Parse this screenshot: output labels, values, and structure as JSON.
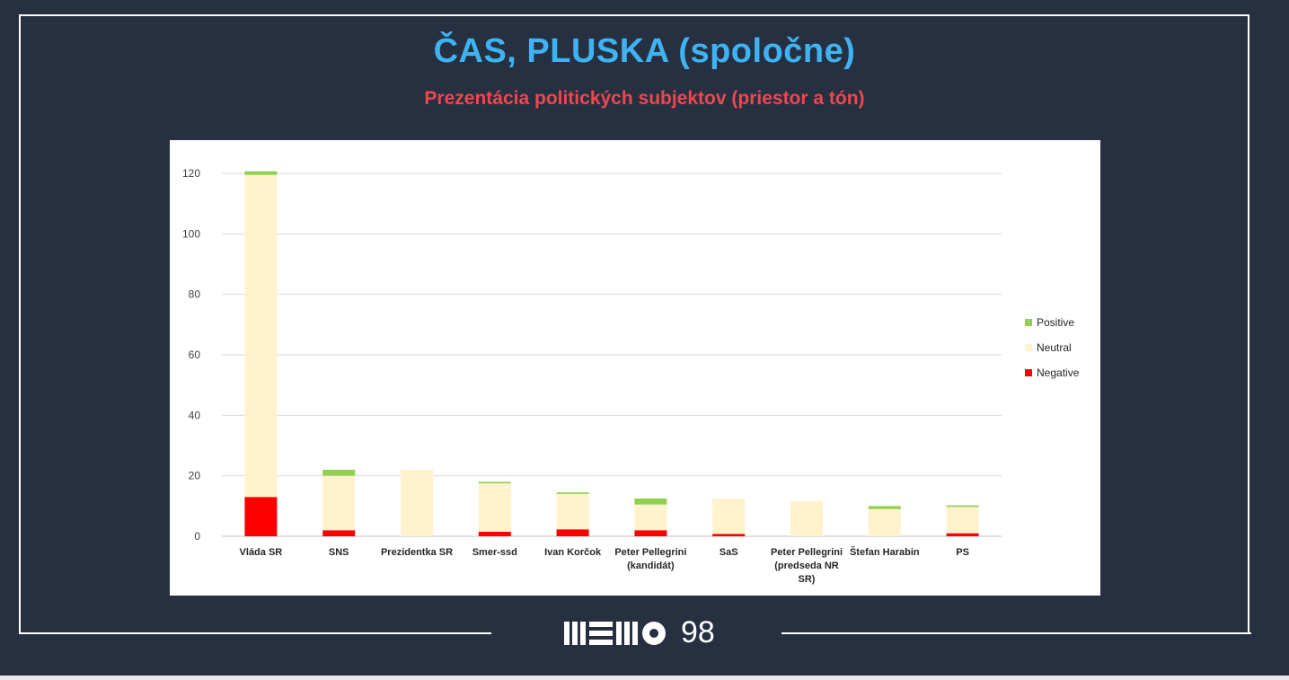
{
  "header": {
    "title": "ČAS, PLUSKA (spoločne)",
    "subtitle": "Prezentácia politických subjektov (priestor a tón)"
  },
  "logo": {
    "number_text": "98",
    "icon": "memo-logo"
  },
  "colors": {
    "background": "#263041",
    "title": "#3fb3f2",
    "subtitle": "#f0474d",
    "positive": "#92d050",
    "neutral": "#fff2cc",
    "negative": "#ff0000"
  },
  "chart_data": {
    "type": "bar",
    "stacked": true,
    "title": "",
    "xlabel": "",
    "ylabel": "",
    "ylim": [
      0,
      120
    ],
    "yticks": [
      0,
      20,
      40,
      60,
      80,
      100,
      120
    ],
    "grid": true,
    "legend_position": "right",
    "categories": [
      "Vláda SR",
      "SNS",
      "Prezidentka SR",
      "Smer-ssd",
      "Ivan Korčok",
      "Peter Pellegrini (kandidát)",
      "SaS",
      "Peter Pellegrini (predseda NR SR)",
      "Štefan Harabin",
      "PS"
    ],
    "category_lines": [
      [
        "Vláda SR"
      ],
      [
        "SNS"
      ],
      [
        "Prezidentka SR"
      ],
      [
        "Smer-ssd"
      ],
      [
        "Ivan Korčok"
      ],
      [
        "Peter Pellegrini",
        "(kandidát)"
      ],
      [
        "SaS"
      ],
      [
        "Peter Pellegrini",
        "(predseda NR",
        "SR)"
      ],
      [
        "Štefan Harabin"
      ],
      [
        "PS"
      ]
    ],
    "series": [
      {
        "name": "Negative",
        "color": "#ff0000",
        "values": [
          13,
          2,
          0,
          1.5,
          2.3,
          2,
          0.8,
          0,
          0,
          1
        ]
      },
      {
        "name": "Neutral",
        "color": "#fff2cc",
        "values": [
          106.5,
          18,
          22,
          16,
          11.7,
          8.5,
          11.7,
          11.7,
          9,
          8.7
        ]
      },
      {
        "name": "Positive",
        "color": "#92d050",
        "values": [
          1.2,
          2,
          0,
          0.5,
          0.5,
          2,
          0,
          0,
          1,
          0.5
        ]
      }
    ],
    "legend": [
      "Positive",
      "Neutral",
      "Negative"
    ]
  }
}
